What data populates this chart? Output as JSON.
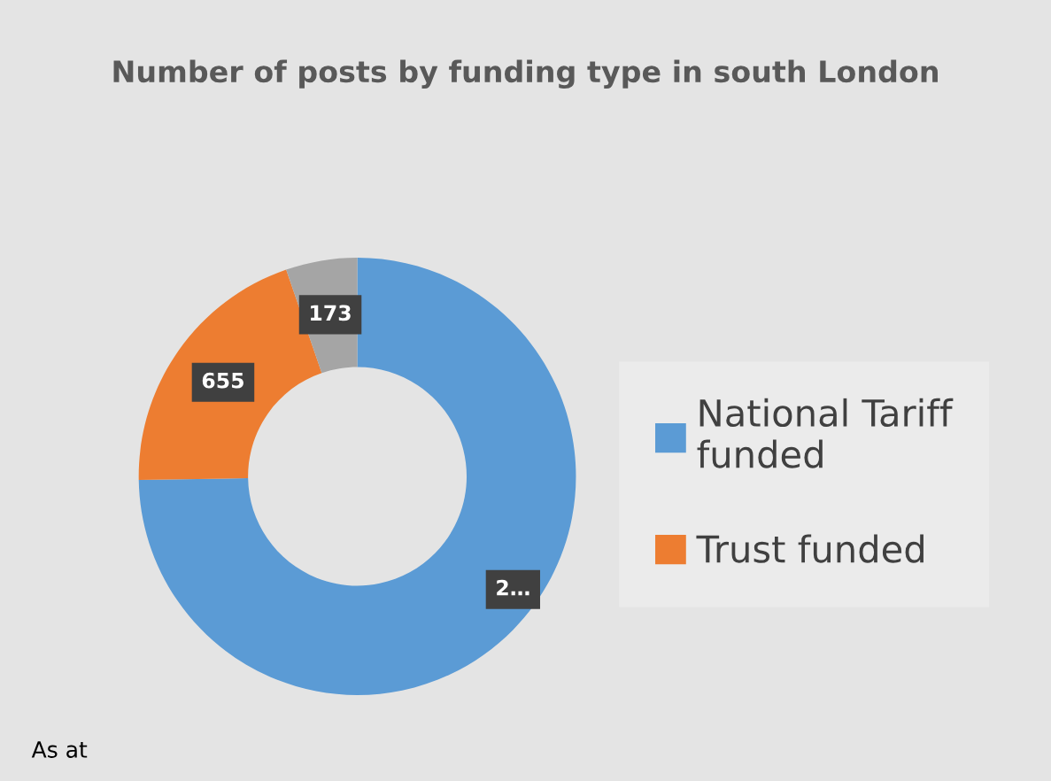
{
  "chart_data": {
    "type": "donut",
    "title": "Number of posts by funding type in south London",
    "categories": [
      "National Tariff funded",
      "Trust funded",
      null
    ],
    "values": [
      2450,
      655,
      173
    ],
    "colors": [
      "#5b9bd5",
      "#ed7d31",
      "#a5a5a5"
    ],
    "value_labels": [
      "2…",
      "655",
      "173"
    ],
    "legend": "right",
    "annotations": [
      "As at"
    ]
  }
}
